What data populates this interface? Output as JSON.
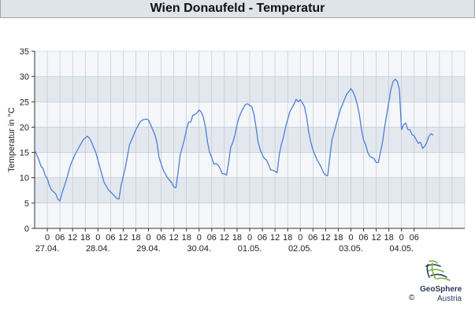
{
  "header": {
    "title": "Wien Donaufeld - Temperatur"
  },
  "branding": {
    "copyright": "©",
    "name": "GeoSphere",
    "sub": "Austria",
    "color": "#2b3a5c"
  },
  "colors": {
    "line": "#4d7fd6",
    "band_light": "#f4f6f9",
    "band_dark": "#e3e8ef",
    "grid": "#b9c2cc"
  },
  "chart_data": {
    "type": "line",
    "title": "Wien Donaufeld - Temperatur",
    "xlabel": "",
    "ylabel": "Temperatur in °C",
    "ylim": [
      0,
      35
    ],
    "yticks": [
      0,
      5,
      10,
      15,
      20,
      25,
      30,
      35
    ],
    "grid": true,
    "x_unit": "hours since 26.04. 18:00",
    "xlim": [
      0,
      204
    ],
    "hour_tick_labels": [
      "0",
      "06",
      "12",
      "18",
      "0",
      "06",
      "12",
      "18",
      "0",
      "06",
      "12",
      "18",
      "0",
      "06",
      "12",
      "18",
      "0",
      "06",
      "12",
      "18",
      "0",
      "06",
      "12",
      "18",
      "0",
      "06",
      "12",
      "18",
      "0",
      "06"
    ],
    "date_labels": [
      "27.04.",
      "28.04.",
      "29.04.",
      "30.04.",
      "01.05.",
      "02.05.",
      "03.05.",
      "04.05."
    ],
    "series": [
      {
        "values": [
          [
            0,
            15.5
          ],
          [
            2,
            13.5
          ],
          [
            3,
            12.3
          ],
          [
            4,
            11.8
          ],
          [
            5,
            10.4
          ],
          [
            6,
            9.8
          ],
          [
            7,
            8.5
          ],
          [
            8,
            7.6
          ],
          [
            9,
            7.2
          ],
          [
            10,
            6.8
          ],
          [
            11,
            5.8
          ],
          [
            12,
            5.4
          ],
          [
            13,
            7.0
          ],
          [
            15,
            9.5
          ],
          [
            17,
            12.5
          ],
          [
            19,
            14.5
          ],
          [
            21,
            16.0
          ],
          [
            23,
            17.5
          ],
          [
            25,
            18.2
          ],
          [
            26,
            17.8
          ],
          [
            27,
            17.0
          ],
          [
            29,
            15.0
          ],
          [
            30,
            13.5
          ],
          [
            32,
            10.5
          ],
          [
            33,
            9.0
          ],
          [
            35,
            7.6
          ],
          [
            37,
            6.8
          ],
          [
            39,
            5.9
          ],
          [
            40,
            5.8
          ],
          [
            41,
            8.5
          ],
          [
            43,
            12.0
          ],
          [
            45,
            16.5
          ],
          [
            47,
            18.5
          ],
          [
            48,
            19.5
          ],
          [
            50,
            21.0
          ],
          [
            51,
            21.4
          ],
          [
            52,
            21.5
          ],
          [
            53,
            21.6
          ],
          [
            54,
            21.4
          ],
          [
            55,
            20.5
          ],
          [
            57,
            18.5
          ],
          [
            58,
            17.0
          ],
          [
            59,
            14.0
          ],
          [
            61,
            11.5
          ],
          [
            63,
            10.0
          ],
          [
            65,
            9.0
          ],
          [
            66,
            8.2
          ],
          [
            67,
            8.0
          ],
          [
            68,
            11.0
          ],
          [
            69,
            14.5
          ],
          [
            70,
            16.0
          ],
          [
            71,
            17.5
          ],
          [
            72,
            19.5
          ],
          [
            73,
            21.0
          ],
          [
            74,
            21.0
          ],
          [
            75,
            22.3
          ],
          [
            76,
            22.5
          ],
          [
            77,
            22.8
          ],
          [
            78,
            23.4
          ],
          [
            79,
            23.0
          ],
          [
            80,
            22.0
          ],
          [
            81,
            20.0
          ],
          [
            82,
            17.0
          ],
          [
            83,
            15.0
          ],
          [
            84,
            14.0
          ],
          [
            85,
            12.7
          ],
          [
            86,
            12.8
          ],
          [
            87,
            12.5
          ],
          [
            88,
            11.8
          ],
          [
            89,
            10.8
          ],
          [
            90,
            10.8
          ],
          [
            91,
            10.5
          ],
          [
            92,
            13.0
          ],
          [
            93,
            16.0
          ],
          [
            94,
            17.0
          ],
          [
            95,
            18.5
          ],
          [
            96,
            20.5
          ],
          [
            97,
            22.0
          ],
          [
            98,
            23.0
          ],
          [
            99,
            23.8
          ],
          [
            100,
            24.5
          ],
          [
            101,
            24.6
          ],
          [
            102,
            24.3
          ],
          [
            103,
            24.0
          ],
          [
            104,
            22.5
          ],
          [
            105,
            20.0
          ],
          [
            106,
            17.0
          ],
          [
            107,
            15.5
          ],
          [
            108,
            14.5
          ],
          [
            109,
            13.8
          ],
          [
            110,
            13.5
          ],
          [
            111,
            12.5
          ],
          [
            112,
            11.5
          ],
          [
            113,
            11.5
          ],
          [
            114,
            11.3
          ],
          [
            115,
            11.0
          ],
          [
            116,
            14.5
          ],
          [
            117,
            16.5
          ],
          [
            118,
            18.0
          ],
          [
            119,
            20.0
          ],
          [
            120,
            21.5
          ],
          [
            121,
            23.0
          ],
          [
            122,
            23.8
          ],
          [
            123,
            24.5
          ],
          [
            124,
            25.5
          ],
          [
            125,
            25.0
          ],
          [
            126,
            25.4
          ],
          [
            127,
            24.8
          ],
          [
            128,
            24.0
          ],
          [
            129,
            22.0
          ],
          [
            130,
            19.0
          ],
          [
            131,
            17.0
          ],
          [
            132,
            15.5
          ],
          [
            133,
            14.5
          ],
          [
            134,
            13.5
          ],
          [
            135,
            12.8
          ],
          [
            136,
            12.0
          ],
          [
            137,
            11.0
          ],
          [
            138,
            10.5
          ],
          [
            139,
            10.4
          ],
          [
            140,
            14.0
          ],
          [
            141,
            17.5
          ],
          [
            142,
            19.0
          ],
          [
            143,
            20.5
          ],
          [
            144,
            22.0
          ],
          [
            145,
            23.5
          ],
          [
            146,
            24.5
          ],
          [
            147,
            25.5
          ],
          [
            148,
            26.5
          ],
          [
            149,
            27.0
          ],
          [
            150,
            27.6
          ],
          [
            151,
            27.0
          ],
          [
            152,
            26.0
          ],
          [
            153,
            24.5
          ],
          [
            154,
            22.5
          ],
          [
            155,
            19.5
          ],
          [
            156,
            17.5
          ],
          [
            157,
            16.5
          ],
          [
            158,
            15.0
          ],
          [
            159,
            14.2
          ],
          [
            160,
            14.0
          ],
          [
            161,
            13.8
          ],
          [
            162,
            13.0
          ],
          [
            163,
            13.0
          ],
          [
            164,
            15.0
          ],
          [
            165,
            17.0
          ],
          [
            166,
            20.0
          ],
          [
            167,
            22.5
          ],
          [
            168,
            25.0
          ],
          [
            169,
            27.5
          ],
          [
            170,
            29.0
          ],
          [
            171,
            29.5
          ],
          [
            172,
            29.0
          ],
          [
            173,
            27.5
          ],
          [
            174,
            19.5
          ],
          [
            175,
            20.5
          ],
          [
            176,
            20.8
          ],
          [
            177,
            19.5
          ],
          [
            178,
            19.5
          ],
          [
            179,
            18.5
          ],
          [
            180,
            18.3
          ],
          [
            181,
            17.5
          ],
          [
            182,
            16.8
          ],
          [
            183,
            17.0
          ],
          [
            184,
            15.8
          ],
          [
            185,
            16.2
          ],
          [
            186,
            17.0
          ],
          [
            187,
            18.2
          ],
          [
            188,
            18.7
          ],
          [
            189,
            18.4
          ]
        ]
      }
    ]
  }
}
